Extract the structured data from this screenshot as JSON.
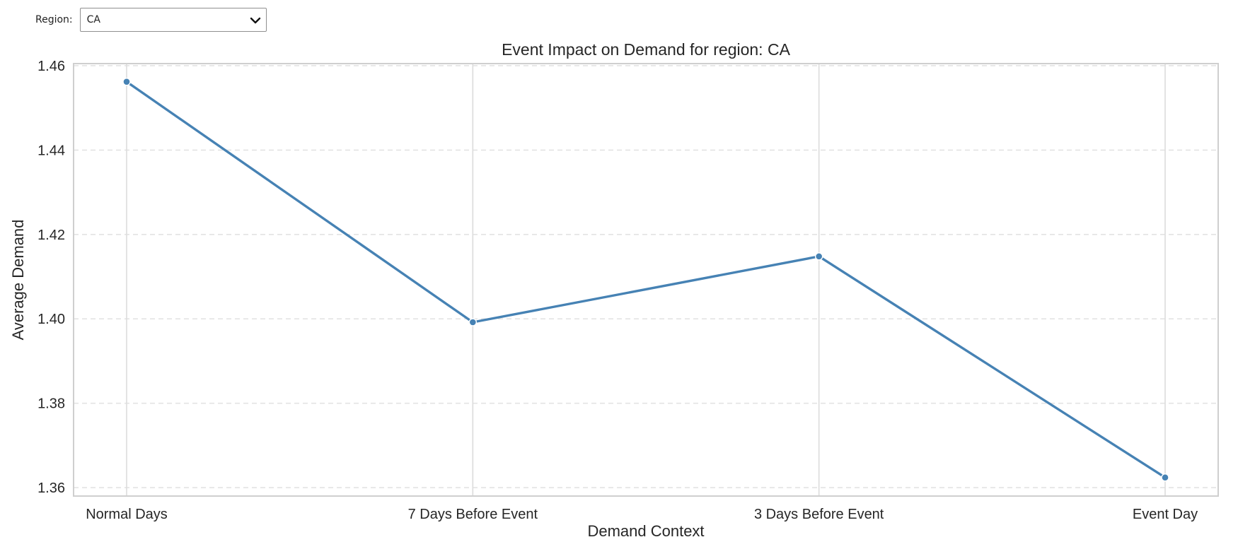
{
  "controls": {
    "region_label": "Region:",
    "region_value": "CA",
    "chevron_icon": "chevron-down-icon"
  },
  "chart_data": {
    "type": "line",
    "title": "Event Impact on Demand for region: CA",
    "xlabel": "Demand Context",
    "ylabel": "Average Demand",
    "categories": [
      "Normal Days",
      "7 Days Before Event",
      "3 Days Before Event",
      "Event Day"
    ],
    "series": [
      {
        "values": [
          1.4562,
          1.3992,
          1.4148,
          1.3624
        ],
        "color": "#4682b4"
      }
    ],
    "yticks": [
      1.36,
      1.38,
      1.4,
      1.42,
      1.44,
      1.46
    ],
    "ytick_labels": [
      "1.36",
      "1.38",
      "1.40",
      "1.42",
      "1.44",
      "1.46"
    ],
    "ylim": [
      1.358,
      1.4605
    ],
    "grid": true,
    "colors": {
      "line": "#4682b4",
      "grid_major": "#dcdcdc",
      "grid_y": "#e3e3e3",
      "frame": "#cfcfcf",
      "text": "#262626"
    }
  }
}
